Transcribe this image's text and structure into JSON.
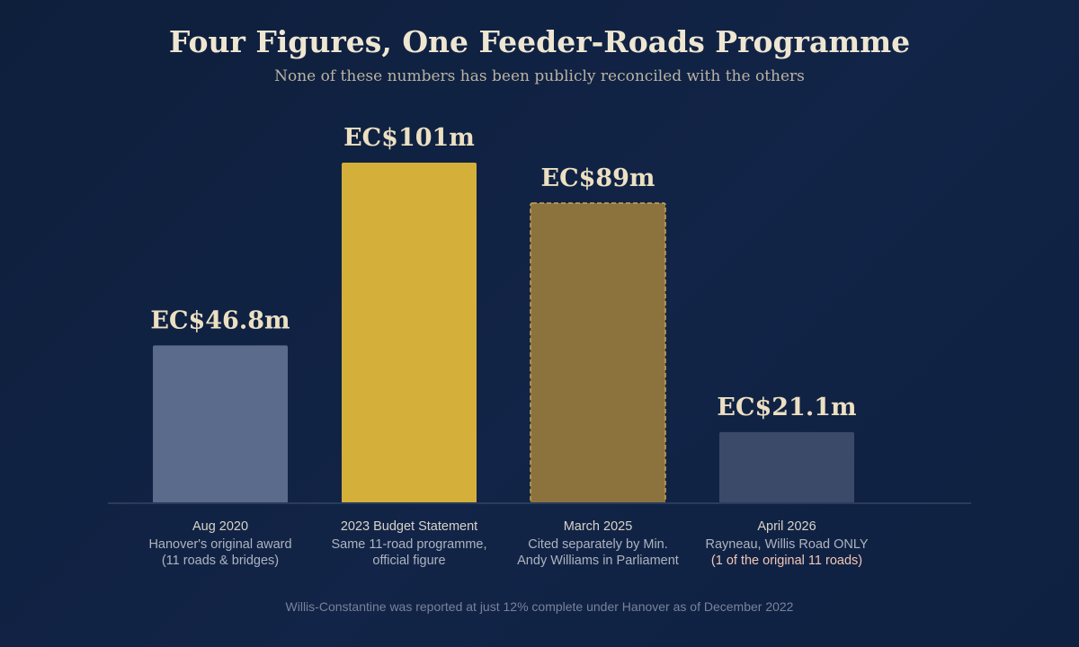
{
  "chart_data": {
    "type": "bar",
    "title": "Four Figures, One Feeder-Roads Programme",
    "subtitle": "None of these numbers has been publicly reconciled with the others",
    "currency_unit": "EC$ millions",
    "ylim": [
      0,
      101
    ],
    "grid": false,
    "bars": [
      {
        "category": "Aug 2020",
        "value": 46.8,
        "label": "EC$46.8m",
        "desc": [
          "Hanover's original award",
          "(11 roads & bridges)"
        ],
        "highlight_line": -1,
        "color": "#5b6b8b",
        "dashed": false
      },
      {
        "category": "2023 Budget Statement",
        "value": 101,
        "label": "EC$101m",
        "desc": [
          "Same 11-road programme,",
          "official figure"
        ],
        "highlight_line": -1,
        "color": "#d4af3a",
        "dashed": false
      },
      {
        "category": "March 2025",
        "value": 89,
        "label": "EC$89m",
        "desc": [
          "Cited separately by Min.",
          "Andy Williams in Parliament"
        ],
        "highlight_line": -1,
        "color": "#8c723d",
        "dashed": true,
        "dash_color": "#c4a55a"
      },
      {
        "category": "April 2026",
        "value": 21.1,
        "label": "EC$21.1m",
        "desc": [
          "Rayneau, Willis Road ONLY",
          "(1 of the original 11 roads)"
        ],
        "highlight_line": 1,
        "color": "#3b4a69",
        "dashed": false
      }
    ],
    "footnote": "Willis-Constantine was reported at just 12% complete under Hanover as of December 2022"
  }
}
